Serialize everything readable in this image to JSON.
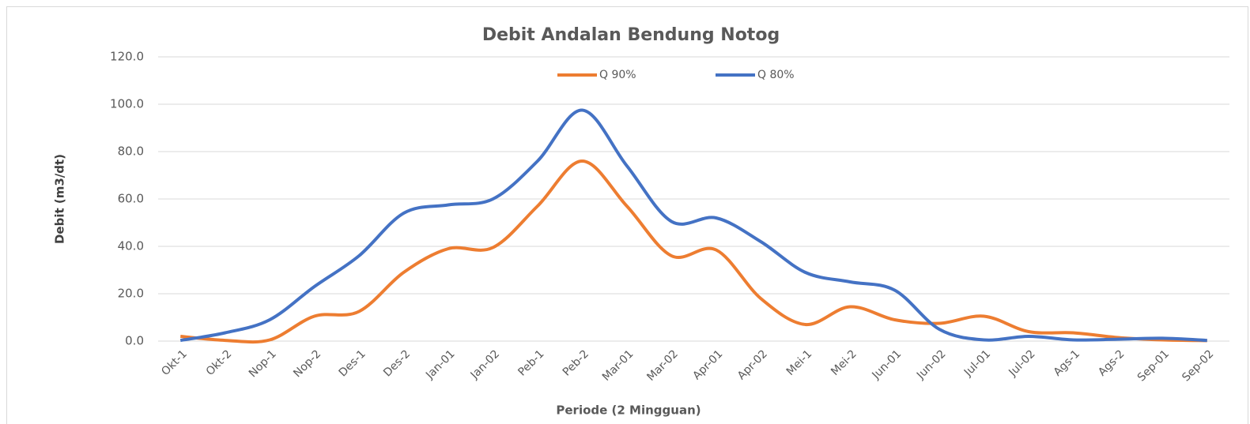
{
  "chart_data": {
    "type": "line",
    "title": "Debit Andalan Bendung Notog",
    "x_label": "Periode (2 Mingguan)",
    "y_label": "Debit (m3/dt)",
    "categories": [
      "Okt-1",
      "Okt-2",
      "Nop-1",
      "Nop-2",
      "Des-1",
      "Des-2",
      "Jan-01",
      "Jan-02",
      "Peb-1",
      "Peb-2",
      "Mar-01",
      "Mar-02",
      "Apr-01",
      "Apr-02",
      "Mei-1",
      "Mei-2",
      "Jun-01",
      "Jun-02",
      "Jul-01",
      "Jul-02",
      "Ags-1",
      "Ags-2",
      "Sep-01",
      "Sep-02"
    ],
    "series": [
      {
        "name": "Q 90%",
        "color": "#ed7d31",
        "values": [
          2.0,
          0.3,
          0.5,
          10.5,
          12.5,
          29,
          39,
          39.5,
          57,
          76,
          57,
          36,
          38.5,
          18,
          7,
          14.5,
          9,
          7.5,
          10.5,
          4,
          3.5,
          1.5,
          0.5,
          0.2
        ]
      },
      {
        "name": "Q 80%",
        "color": "#4472c4",
        "values": [
          0.3,
          3.5,
          9,
          23,
          36,
          54,
          57.5,
          60,
          76,
          97.5,
          74,
          50.5,
          52,
          42,
          29,
          25,
          21.5,
          5,
          0.5,
          2,
          0.5,
          0.8,
          1.2,
          0.3
        ]
      }
    ],
    "ylim": [
      0,
      120
    ],
    "yticks": [
      {
        "value": 0,
        "label": "0.0"
      },
      {
        "value": 20,
        "label": "20.0"
      },
      {
        "value": 40,
        "label": "40.0"
      },
      {
        "value": 60,
        "label": "60.0"
      },
      {
        "value": 80,
        "label": "80.0"
      },
      {
        "value": 100,
        "label": "100.0"
      },
      {
        "value": 120,
        "label": "120.0"
      }
    ],
    "grid": true,
    "legend": "top",
    "smooth": true
  }
}
